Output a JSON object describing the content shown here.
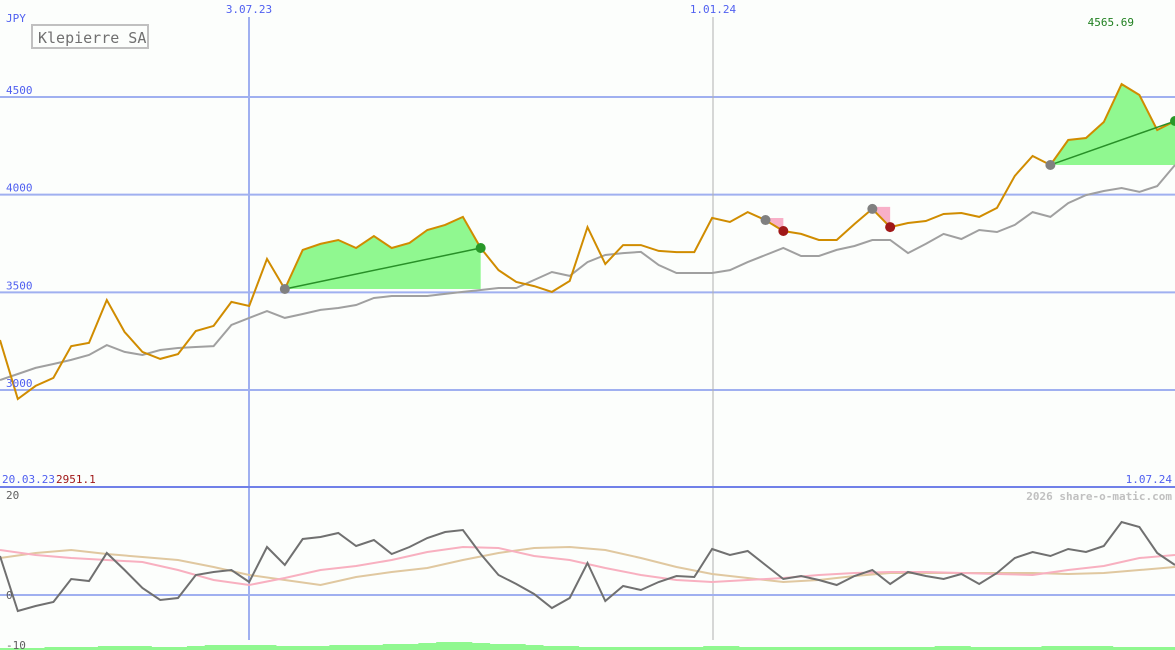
{
  "chart_data": [
    {
      "type": "line",
      "title": "Klepierre SA",
      "currency": "JPY",
      "ylim": [
        2750,
        4750
      ],
      "yticks": [
        "4500",
        "4000",
        "3500",
        "3000"
      ],
      "ytick_values": [
        4500,
        4000,
        3500,
        3000
      ],
      "x_start_label": "20.03.23",
      "x_end_label": "1.07.24",
      "x_marker_labels": [
        "3.07.23",
        "1.01.24"
      ],
      "min_label": "2951.1",
      "max_label": "4565.69",
      "grid": true,
      "colors": {
        "price": "#d08c00",
        "ma": "#a0a0a0",
        "gain_fill": "#90f890",
        "trend": "#289028",
        "loss_fill": "#f8b0c8",
        "buy": "#808080",
        "sell_gain": "#289828",
        "sell_loss": "#a01818",
        "grid": "#a0b0f0"
      },
      "series": [
        {
          "key": "price",
          "values": [
            3256,
            2954,
            3021,
            3062,
            3225,
            3241,
            3461,
            3297,
            3195,
            3159,
            3184,
            3302,
            3328,
            3451,
            3430,
            3671,
            3517,
            3717,
            3748,
            3768,
            3727,
            3788,
            3727,
            3753,
            3819,
            3845,
            3886,
            3727,
            3614,
            3553,
            3532,
            3502,
            3558,
            3834,
            3645,
            3742,
            3742,
            3712,
            3706,
            3706,
            3881,
            3860,
            3911,
            3870,
            3814,
            3799,
            3768,
            3768,
            3850,
            3927,
            3834,
            3855,
            3865,
            3901,
            3906,
            3886,
            3932,
            4096,
            4198,
            4152,
            4280,
            4290,
            4372,
            4566,
            4510,
            4331,
            4377
          ]
        },
        {
          "key": "ma",
          "values": [
            3051,
            3082,
            3113,
            3133,
            3154,
            3179,
            3230,
            3195,
            3179,
            3205,
            3215,
            3220,
            3225,
            3333,
            3369,
            3404,
            3369,
            3389,
            3410,
            3420,
            3435,
            3471,
            3481,
            3481,
            3481,
            3492,
            3502,
            3512,
            3522,
            3522,
            3563,
            3604,
            3584,
            3655,
            3691,
            3701,
            3707,
            3640,
            3599,
            3599,
            3599,
            3614,
            3655,
            3691,
            3727,
            3686,
            3686,
            3717,
            3737,
            3768,
            3768,
            3701,
            3748,
            3799,
            3773,
            3819,
            3809,
            3845,
            3911,
            3886,
            3957,
            3998,
            4019,
            4034,
            4014,
            4044,
            4152
          ]
        }
      ],
      "trades": [
        {
          "buy_index": 16,
          "sell_index": 27,
          "result": "gain"
        },
        {
          "buy_index": 43,
          "sell_index": 44,
          "result": "loss"
        },
        {
          "buy_index": 49,
          "sell_index": 50,
          "result": "loss"
        },
        {
          "buy_index": 59,
          "sell_index": 66,
          "result": "gain"
        }
      ]
    },
    {
      "type": "line",
      "ylim": [
        -10,
        20
      ],
      "yticks": [
        "20",
        "0",
        "-10"
      ],
      "ytick_values": [
        20,
        0,
        -10
      ],
      "colors": {
        "osc": "#707070",
        "signal1": "#f8b0c0",
        "signal2": "#e0c8a0",
        "volume": "#90f890"
      },
      "series": [
        {
          "key": "osc",
          "values": [
            7.8,
            -3.2,
            -2.2,
            -1.4,
            3.2,
            2.8,
            8.4,
            5,
            1.4,
            -1,
            -0.6,
            4,
            4.6,
            5,
            2.6,
            9.6,
            6,
            11.2,
            11.6,
            12.4,
            9.8,
            11,
            8.2,
            9.6,
            11.4,
            12.6,
            13,
            8.2,
            4,
            2.2,
            0.2,
            -2.6,
            -0.6,
            6.4,
            -1.2,
            1.8,
            1,
            2.6,
            3.8,
            3.6,
            9.2,
            8,
            8.8,
            6,
            3.2,
            3.8,
            3,
            2,
            3.8,
            5,
            2.2,
            4.6,
            3.8,
            3.2,
            4.2,
            2.2,
            4.4,
            7.4,
            8.6,
            7.8,
            9.2,
            8.6,
            9.8,
            14.6,
            13.6,
            8.4,
            6
          ]
        },
        {
          "key": "signal1",
          "values": [
            9,
            8,
            7.4,
            7,
            6.6,
            5,
            3,
            2,
            3.4,
            5,
            5.8,
            7,
            8.6,
            9.6,
            9.4,
            7.8,
            7,
            5.4,
            4,
            3,
            2.6,
            3,
            3.4,
            4,
            4.4,
            4.6,
            4.6,
            4.4,
            4.2,
            4,
            5,
            5.8,
            7.4,
            8
          ]
        },
        {
          "key": "signal2",
          "values": [
            7.4,
            8.4,
            9,
            8.2,
            7.6,
            7,
            5.6,
            4,
            3,
            2,
            3.6,
            4.6,
            5.4,
            7,
            8.4,
            9.4,
            9.6,
            9,
            7.4,
            5.6,
            4.2,
            3.4,
            2.6,
            3,
            3.8,
            4.4,
            4.4,
            4.4,
            4.4,
            4.4,
            4.2,
            4.4,
            5,
            5.6
          ]
        }
      ],
      "volume": [
        2,
        2,
        2,
        3,
        3,
        3,
        4,
        4,
        4,
        3,
        3,
        4,
        5,
        5,
        5,
        5,
        4,
        4,
        4,
        5,
        5,
        5,
        6,
        6,
        7,
        8,
        8,
        7,
        6,
        6,
        5,
        4,
        4,
        3,
        3,
        3,
        3,
        3,
        3,
        3,
        4,
        4,
        3,
        3,
        3,
        3,
        3,
        3,
        3,
        3,
        3,
        3,
        3,
        4,
        4,
        3,
        3,
        3,
        3,
        4,
        4,
        4,
        4,
        3,
        3,
        3,
        3
      ]
    }
  ],
  "watermark": "2026 share-o-matic.com"
}
